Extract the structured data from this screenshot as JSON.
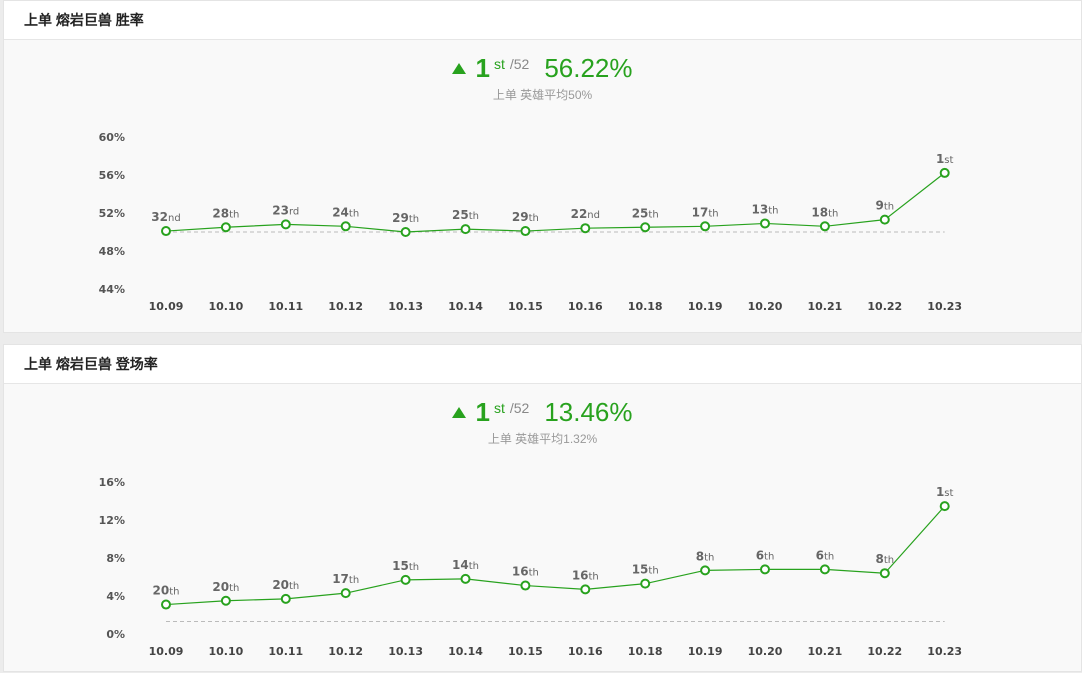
{
  "panels": [
    {
      "title": "上单 熔岩巨兽 胜率",
      "rank_num": "1",
      "rank_suffix": "st",
      "rank_total": "/52",
      "value": "56.22%",
      "average_text": "上单 英雄平均50%"
    },
    {
      "title": "上单 熔岩巨兽 登场率",
      "rank_num": "1",
      "rank_suffix": "st",
      "rank_total": "/52",
      "value": "13.46%",
      "average_text": "上单 英雄平均1.32%"
    }
  ],
  "colors": {
    "accent": "#28a21e",
    "line": "#28a21e",
    "average_line": "#bbbbbb"
  },
  "icons": {
    "rank_up": "triangle-up-icon"
  },
  "chart_data": [
    {
      "type": "line",
      "title": "上单 熔岩巨兽 胜率",
      "categories": [
        "10.09",
        "10.10",
        "10.11",
        "10.12",
        "10.13",
        "10.14",
        "10.15",
        "10.16",
        "10.18",
        "10.19",
        "10.20",
        "10.21",
        "10.22",
        "10.23"
      ],
      "values": [
        50.1,
        50.5,
        50.8,
        50.6,
        50.0,
        50.3,
        50.1,
        50.4,
        50.5,
        50.6,
        50.9,
        50.6,
        51.3,
        56.22
      ],
      "rank_labels": [
        [
          "32",
          "nd"
        ],
        [
          "28",
          "th"
        ],
        [
          "23",
          "rd"
        ],
        [
          "24",
          "th"
        ],
        [
          "29",
          "th"
        ],
        [
          "25",
          "th"
        ],
        [
          "29",
          "th"
        ],
        [
          "22",
          "nd"
        ],
        [
          "25",
          "th"
        ],
        [
          "17",
          "th"
        ],
        [
          "13",
          "th"
        ],
        [
          "18",
          "th"
        ],
        [
          "9",
          "th"
        ],
        [
          "1",
          "st"
        ]
      ],
      "ylim": [
        44,
        60
      ],
      "yticks": [
        44,
        48,
        52,
        56,
        60
      ],
      "ytick_labels": [
        "44%",
        "48%",
        "52%",
        "56%",
        "60%"
      ],
      "average": 50
    },
    {
      "type": "line",
      "title": "上单 熔岩巨兽 登场率",
      "categories": [
        "10.09",
        "10.10",
        "10.11",
        "10.12",
        "10.13",
        "10.14",
        "10.15",
        "10.16",
        "10.18",
        "10.19",
        "10.20",
        "10.21",
        "10.22",
        "10.23"
      ],
      "values": [
        3.1,
        3.5,
        3.7,
        4.3,
        5.7,
        5.8,
        5.1,
        4.7,
        5.3,
        6.7,
        6.8,
        6.8,
        6.4,
        13.46
      ],
      "rank_labels": [
        [
          "20",
          "th"
        ],
        [
          "20",
          "th"
        ],
        [
          "20",
          "th"
        ],
        [
          "17",
          "th"
        ],
        [
          "15",
          "th"
        ],
        [
          "14",
          "th"
        ],
        [
          "16",
          "th"
        ],
        [
          "16",
          "th"
        ],
        [
          "15",
          "th"
        ],
        [
          "8",
          "th"
        ],
        [
          "6",
          "th"
        ],
        [
          "6",
          "th"
        ],
        [
          "8",
          "th"
        ],
        [
          "1",
          "st"
        ]
      ],
      "ylim": [
        0,
        16
      ],
      "yticks": [
        0,
        4,
        8,
        12,
        16
      ],
      "ytick_labels": [
        "0%",
        "4%",
        "8%",
        "12%",
        "16%"
      ],
      "average": 1.32
    }
  ]
}
